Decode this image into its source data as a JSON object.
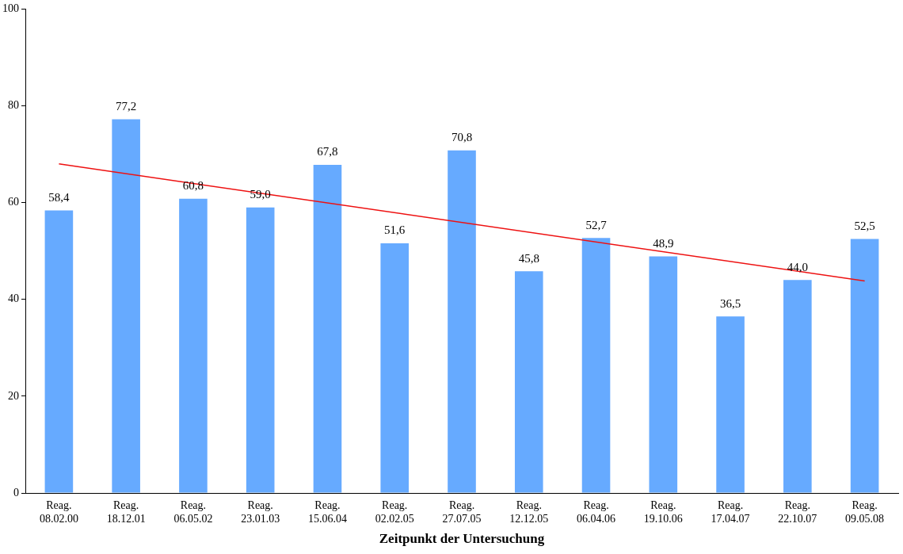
{
  "chart_data": {
    "type": "bar",
    "xlabel": "Zeitpunkt der Untersuchung",
    "categories": [
      "Reag. 08.02.00",
      "Reag. 18.12.01",
      "Reag. 06.05.02",
      "Reag. 23.01.03",
      "Reag. 15.06.04",
      "Reag. 02.02.05",
      "Reag. 27.07.05",
      "Reag. 12.12.05",
      "Reag. 06.04.06",
      "Reag. 19.10.06",
      "Reag. 17.04.07",
      "Reag. 22.10.07",
      "Reag. 09.05.08"
    ],
    "series": [
      {
        "color": "#66aaff",
        "values": [
          58.4,
          77.2,
          60.8,
          59.0,
          67.8,
          51.6,
          70.8,
          45.8,
          52.7,
          48.9,
          36.5,
          44.0,
          52.5
        ],
        "value_labels": [
          "58,4",
          "77,2",
          "60,8",
          "59,0",
          "67,8",
          "51,6",
          "70,8",
          "45,8",
          "52,7",
          "48,9",
          "36,5",
          "44,0",
          "52,5"
        ]
      },
      {
        "type": "line",
        "color": "#ee1111",
        "x": [
          "Reag. 08.02.00",
          "Reag. 09.05.08"
        ],
        "values": [
          68,
          43.8
        ],
        "marker": "none"
      }
    ],
    "ylim": [
      0,
      100
    ],
    "yticks": [
      0,
      20,
      40,
      60,
      80,
      100
    ],
    "grid": false,
    "legend": false
  }
}
